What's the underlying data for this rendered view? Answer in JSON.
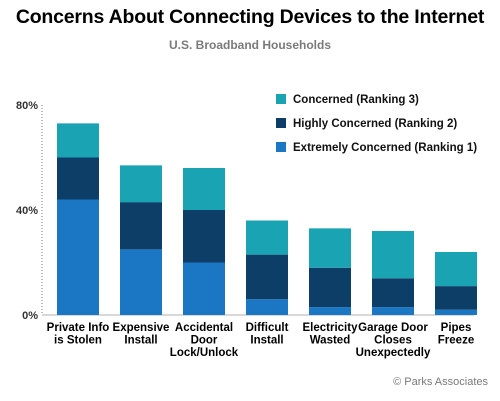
{
  "header": {
    "title": "Concerns About Connecting Devices to the Internet",
    "subtitle": "U.S. Broadband Households"
  },
  "footer": {
    "credit": "© Parks Associates"
  },
  "colors": {
    "extremely": "#1b76c4",
    "highly": "#0d3e68",
    "concerned": "#1aa3b3",
    "axis": "#7a7a7a",
    "text": "#000000"
  },
  "chart_data": {
    "type": "bar",
    "stacked": true,
    "title": "Concerns About Connecting Devices to the Internet",
    "subtitle": "U.S. Broadband Households",
    "categories": [
      [
        "Private Info",
        "is Stolen"
      ],
      [
        "Expensive",
        "Install"
      ],
      [
        "Accidental",
        "Door",
        "Lock/Unlock"
      ],
      [
        "Difficult",
        "Install"
      ],
      [
        "Electricity",
        "Wasted"
      ],
      [
        "Garage Door",
        "Closes",
        "Unexpectedly"
      ],
      [
        "Pipes",
        "Freeze"
      ]
    ],
    "series": [
      {
        "name": "Extremely Concerned (Ranking 1)",
        "values": [
          44,
          25,
          20,
          6,
          3,
          3,
          2
        ]
      },
      {
        "name": "Highly Concerned (Ranking 2)",
        "values": [
          16,
          18,
          20,
          17,
          15,
          11,
          9
        ]
      },
      {
        "name": "Concerned (Ranking 3)",
        "values": [
          13,
          14,
          16,
          13,
          15,
          18,
          13
        ]
      }
    ],
    "ylim": [
      0,
      80
    ],
    "yticks": [
      "0%",
      "40%",
      "80%"
    ],
    "ytick_values": [
      0,
      40,
      80
    ],
    "legend": {
      "position": "top-right",
      "order": [
        "Concerned (Ranking 3)",
        "Highly Concerned (Ranking 2)",
        "Extremely Concerned (Ranking 1)"
      ]
    },
    "grid": false
  }
}
